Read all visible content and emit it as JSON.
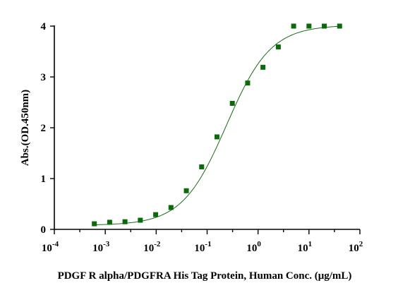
{
  "chart_data": {
    "type": "scatter",
    "title": "",
    "xlabel": "PDGF R alpha/PDGFRA His Tag Protein, Human Conc. (μg/mL)",
    "ylabel": "Abs.(OD.450nm)",
    "x_scale": "log",
    "xlim": [
      0.0001,
      100
    ],
    "ylim": [
      0,
      4
    ],
    "x_tick_labels": [
      {
        "base": "10",
        "exp": "-4"
      },
      {
        "base": "10",
        "exp": "-3"
      },
      {
        "base": "10",
        "exp": "-2"
      },
      {
        "base": "10",
        "exp": "-1"
      },
      {
        "base": "10",
        "exp": "0"
      },
      {
        "base": "10",
        "exp": "1"
      },
      {
        "base": "10",
        "exp": "2"
      }
    ],
    "y_tick_labels": [
      "0",
      "1",
      "2",
      "3",
      "4"
    ],
    "grid": false,
    "series": [
      {
        "color": "#0b6b0b",
        "x": [
          0.00061,
          0.00122,
          0.00244,
          0.00488,
          0.00977,
          0.0195,
          0.0391,
          0.0781,
          0.156,
          0.3125,
          0.625,
          1.25,
          2.5,
          5,
          10,
          20,
          40
        ],
        "y": [
          0.11,
          0.14,
          0.15,
          0.18,
          0.29,
          0.43,
          0.76,
          1.23,
          1.82,
          2.48,
          2.88,
          3.19,
          3.59,
          4.0,
          4.0,
          4.0,
          4.0
        ]
      }
    ],
    "fit": {
      "model": "4PL",
      "bottom": 0.08,
      "top": 4.02,
      "ec50": 0.24,
      "hill": 1.0
    }
  }
}
